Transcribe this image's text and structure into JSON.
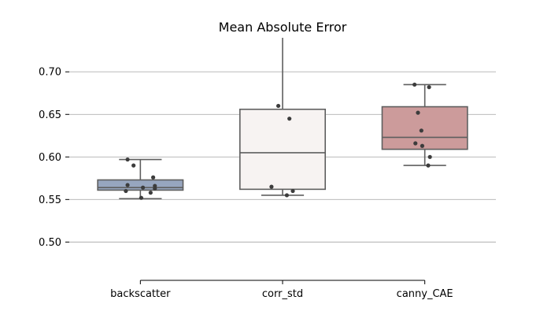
{
  "chart_data": {
    "type": "box",
    "title": "Mean Absolute Error",
    "xlabel": "",
    "ylabel": "",
    "categories": [
      "backscatter",
      "corr_std",
      "canny_CAE"
    ],
    "y_ticks": [
      "0.50",
      "0.55",
      "0.60",
      "0.65",
      "0.70"
    ],
    "ylim": [
      0.455,
      0.74
    ],
    "grid": "horizontal",
    "boxes": [
      {
        "category": "backscatter",
        "whisker_low": 0.551,
        "q1": 0.561,
        "median": 0.564,
        "q3": 0.573,
        "whisker_high": 0.597,
        "color": "#97a6bf"
      },
      {
        "category": "corr_std",
        "whisker_low": 0.555,
        "q1": 0.562,
        "median": 0.605,
        "q3": 0.656,
        "whisker_high": 0.74,
        "color": "#f7f3f2"
      },
      {
        "category": "canny_CAE",
        "whisker_low": 0.59,
        "q1": 0.609,
        "median": 0.623,
        "q3": 0.659,
        "whisker_high": 0.685,
        "color": "#cc9b9b"
      }
    ],
    "points": [
      {
        "category": "backscatter",
        "values": [
          0.597,
          0.59,
          0.576,
          0.567,
          0.566,
          0.564,
          0.563,
          0.56,
          0.558,
          0.552
        ],
        "offsets": [
          -0.15,
          -0.08,
          0.15,
          -0.15,
          0.17,
          0.03,
          0.17,
          -0.17,
          0.12,
          0.01
        ]
      },
      {
        "category": "corr_std",
        "values": [
          0.66,
          0.645,
          0.565,
          0.56,
          0.555
        ],
        "offsets": [
          -0.05,
          0.08,
          -0.13,
          0.12,
          0.05
        ]
      },
      {
        "category": "canny_CAE",
        "values": [
          0.685,
          0.682,
          0.652,
          0.631,
          0.616,
          0.613,
          0.6,
          0.59
        ],
        "offsets": [
          -0.12,
          0.05,
          -0.08,
          -0.04,
          -0.11,
          -0.03,
          0.06,
          0.04
        ]
      }
    ],
    "box_edge_color": "#5f5f5f",
    "point_color": "#3c3c3c",
    "grid_color": "#b0b0b0"
  }
}
